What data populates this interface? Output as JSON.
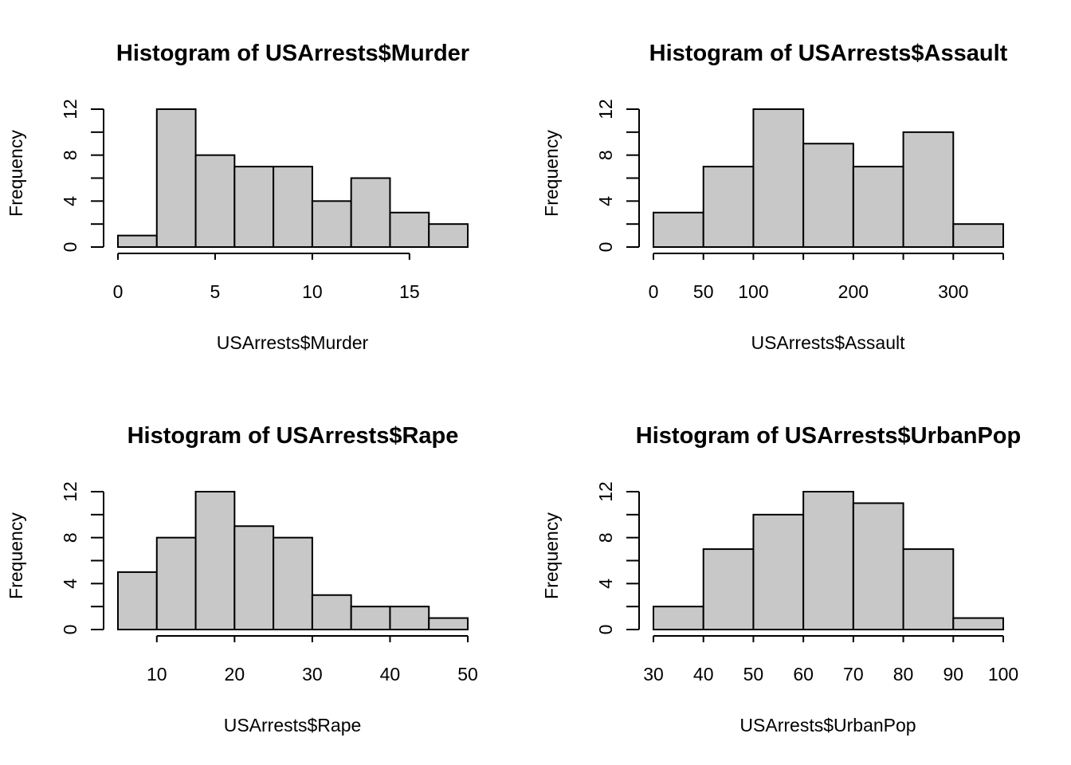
{
  "colors": {
    "bar_fill": "#c8c8c8",
    "bar_stroke": "#000000",
    "axis": "#000000"
  },
  "chart_data": [
    {
      "type": "bar",
      "title": "Histogram of USArrests$Murder",
      "xlabel": "USArrests$Murder",
      "ylabel": "Frequency",
      "bins": [
        [
          0,
          2
        ],
        [
          2,
          4
        ],
        [
          4,
          6
        ],
        [
          6,
          8
        ],
        [
          8,
          10
        ],
        [
          10,
          12
        ],
        [
          12,
          14
        ],
        [
          14,
          16
        ],
        [
          16,
          18
        ]
      ],
      "values": [
        1,
        12,
        8,
        7,
        7,
        4,
        6,
        3,
        2
      ],
      "xlim": [
        0,
        18
      ],
      "ylim": [
        0,
        12
      ],
      "xticks": [
        0,
        5,
        10,
        15
      ],
      "xtick_labels": [
        "0",
        "5",
        "10",
        "15"
      ],
      "yticks": [
        0,
        2,
        4,
        6,
        8,
        10,
        12
      ],
      "ytick_labels": [
        "0",
        "",
        "4",
        "",
        "8",
        "",
        "12"
      ],
      "grid": false
    },
    {
      "type": "bar",
      "title": "Histogram of USArrests$Assault",
      "xlabel": "USArrests$Assault",
      "ylabel": "Frequency",
      "bins": [
        [
          0,
          50
        ],
        [
          50,
          100
        ],
        [
          100,
          150
        ],
        [
          150,
          200
        ],
        [
          200,
          250
        ],
        [
          250,
          300
        ],
        [
          300,
          350
        ]
      ],
      "values": [
        3,
        7,
        12,
        9,
        7,
        10,
        2
      ],
      "xlim": [
        0,
        350
      ],
      "ylim": [
        0,
        12
      ],
      "xticks": [
        0,
        50,
        100,
        150,
        200,
        250,
        300,
        350
      ],
      "xtick_labels": [
        "0",
        "50",
        "100",
        "",
        "200",
        "",
        "300",
        ""
      ],
      "yticks": [
        0,
        2,
        4,
        6,
        8,
        10,
        12
      ],
      "ytick_labels": [
        "0",
        "",
        "4",
        "",
        "8",
        "",
        "12"
      ],
      "grid": false
    },
    {
      "type": "bar",
      "title": "Histogram of USArrests$Rape",
      "xlabel": "USArrests$Rape",
      "ylabel": "Frequency",
      "bins": [
        [
          5,
          10
        ],
        [
          10,
          15
        ],
        [
          15,
          20
        ],
        [
          20,
          25
        ],
        [
          25,
          30
        ],
        [
          30,
          35
        ],
        [
          35,
          40
        ],
        [
          40,
          45
        ],
        [
          45,
          50
        ]
      ],
      "values": [
        5,
        8,
        12,
        9,
        8,
        3,
        2,
        2,
        1
      ],
      "xlim": [
        5,
        50
      ],
      "ylim": [
        0,
        12
      ],
      "xticks": [
        10,
        20,
        30,
        40,
        50
      ],
      "xtick_labels": [
        "10",
        "20",
        "30",
        "40",
        "50"
      ],
      "yticks": [
        0,
        2,
        4,
        6,
        8,
        10,
        12
      ],
      "ytick_labels": [
        "0",
        "",
        "4",
        "",
        "8",
        "",
        "12"
      ],
      "grid": false
    },
    {
      "type": "bar",
      "title": "Histogram of USArrests$UrbanPop",
      "xlabel": "USArrests$UrbanPop",
      "ylabel": "Frequency",
      "bins": [
        [
          30,
          40
        ],
        [
          40,
          50
        ],
        [
          50,
          60
        ],
        [
          60,
          70
        ],
        [
          70,
          80
        ],
        [
          80,
          90
        ],
        [
          90,
          100
        ]
      ],
      "values": [
        2,
        7,
        10,
        12,
        11,
        7,
        1
      ],
      "xlim": [
        30,
        100
      ],
      "ylim": [
        0,
        12
      ],
      "xticks": [
        30,
        40,
        50,
        60,
        70,
        80,
        90,
        100
      ],
      "xtick_labels": [
        "30",
        "40",
        "50",
        "60",
        "70",
        "80",
        "90",
        "100"
      ],
      "yticks": [
        0,
        2,
        4,
        6,
        8,
        10,
        12
      ],
      "ytick_labels": [
        "0",
        "",
        "4",
        "",
        "8",
        "",
        "12"
      ],
      "grid": false
    }
  ]
}
